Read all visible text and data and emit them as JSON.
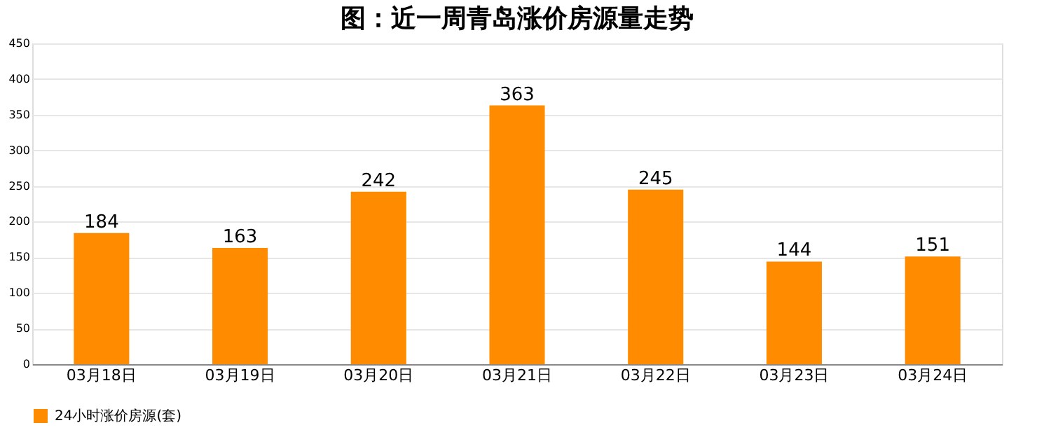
{
  "chart_data": {
    "type": "bar",
    "title": "图：近一周青岛涨价房源量走势",
    "categories": [
      "03月18日",
      "03月19日",
      "03月20日",
      "03月21日",
      "03月22日",
      "03月23日",
      "03月24日"
    ],
    "series": [
      {
        "name": "24小时涨价房源(套)",
        "color": "#ff8c00",
        "values": [
          184,
          163,
          242,
          363,
          245,
          144,
          151
        ]
      }
    ],
    "ylim": [
      0,
      450
    ],
    "yticks": [
      0,
      50,
      100,
      150,
      200,
      250,
      300,
      350,
      400,
      450
    ],
    "grid": "y",
    "legend": "bottom",
    "data_labels": true
  }
}
